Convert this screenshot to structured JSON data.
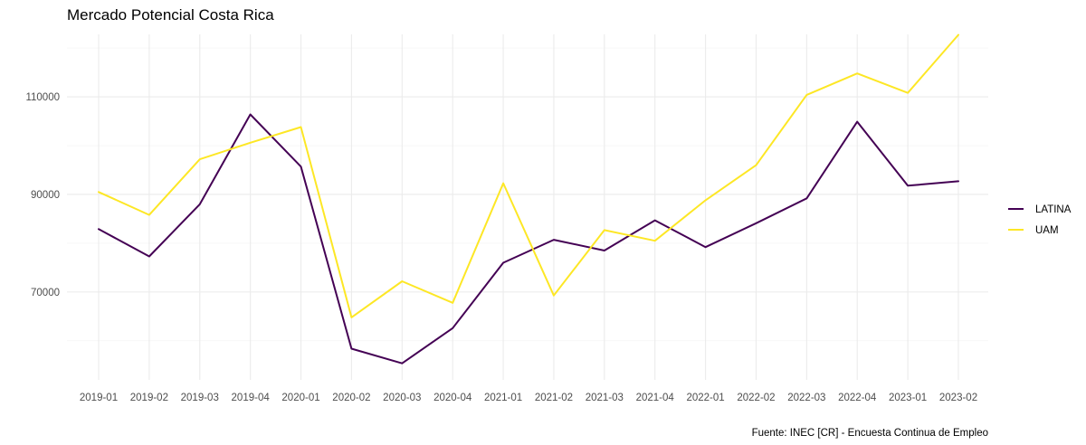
{
  "chart_data": {
    "type": "line",
    "title": "Mercado Potencial Costa Rica",
    "caption": "Fuente: INEC [CR] - Encuesta Continua de Empleo",
    "xlabel": "",
    "ylabel": "",
    "categories": [
      "2019-01",
      "2019-02",
      "2019-03",
      "2019-04",
      "2020-01",
      "2020-02",
      "2020-03",
      "2020-04",
      "2021-01",
      "2021-02",
      "2021-03",
      "2021-04",
      "2022-01",
      "2022-02",
      "2022-03",
      "2022-04",
      "2023-01",
      "2023-02"
    ],
    "yticks": [
      70000,
      90000,
      110000
    ],
    "ytick_labels": [
      "70000",
      "90000",
      "110000"
    ],
    "ylim": [
      52000,
      122800
    ],
    "grid": true,
    "legend_position": "right",
    "series": [
      {
        "name": "LATINA",
        "color": "#440154",
        "values": [
          82900,
          77300,
          88000,
          106400,
          95700,
          58400,
          55400,
          62600,
          76000,
          80700,
          78500,
          84700,
          79200,
          84100,
          89200,
          104900,
          91800,
          92700
        ]
      },
      {
        "name": "UAM",
        "color": "#FDE725",
        "values": [
          90500,
          85800,
          97200,
          100600,
          103800,
          64800,
          72200,
          67800,
          92300,
          69300,
          82700,
          80500,
          88800,
          96000,
          110400,
          114800,
          110800,
          122700
        ]
      }
    ]
  }
}
